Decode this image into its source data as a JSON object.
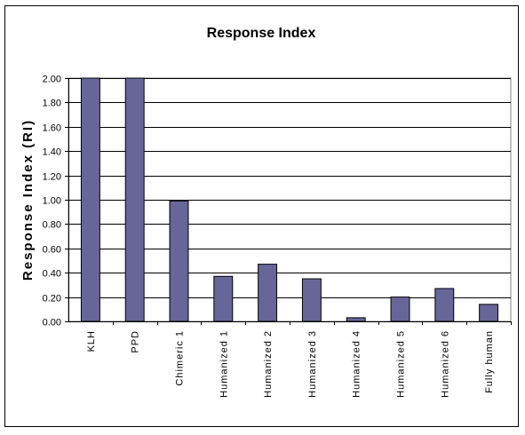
{
  "chart_data": {
    "type": "bar",
    "title": "Response Index",
    "xlabel": "",
    "ylabel": "Response Index (RI)",
    "ylim": [
      0,
      2.0
    ],
    "yticks": [
      "0.00",
      "0.20",
      "0.40",
      "0.60",
      "0.80",
      "1.00",
      "1.20",
      "1.40",
      "1.60",
      "1.80",
      "2.00"
    ],
    "categories": [
      "KLH",
      "PPD",
      "Chimeric 1",
      "Humanized 1",
      "Humanized 2",
      "Humanized 3",
      "Humanized 4",
      "Humanized 5",
      "Humanized 6",
      "Fully human"
    ],
    "values": [
      2.0,
      2.0,
      0.99,
      0.37,
      0.47,
      0.35,
      0.03,
      0.2,
      0.27,
      0.14
    ],
    "grid": true,
    "legend": "none",
    "bar_color": "#666699",
    "gridline_color": "#000000"
  }
}
